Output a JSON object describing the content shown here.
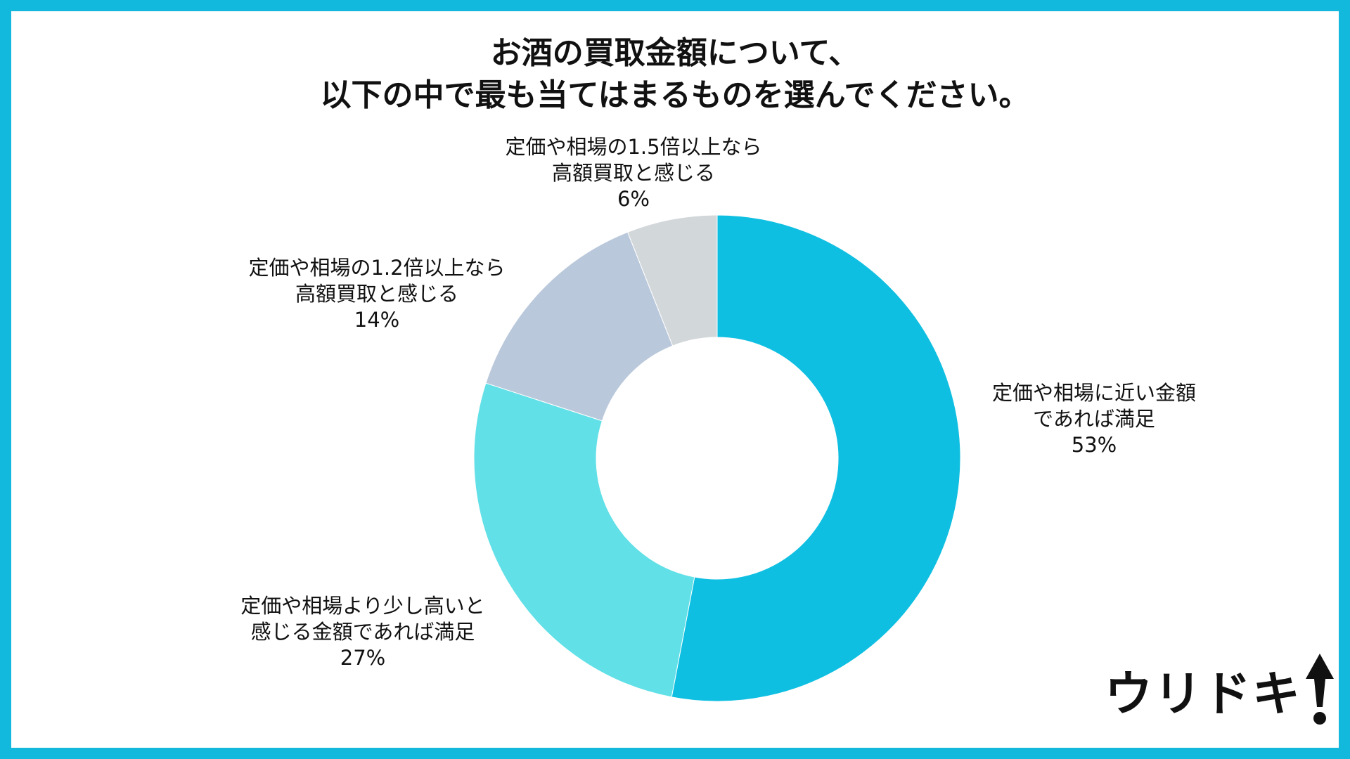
{
  "title_lines": [
    "お酒の買取金額について、",
    "以下の中で最も当てはまるものを選んでください。"
  ],
  "brand": {
    "name": "ウリドキ"
  },
  "colors": {
    "border": "#12b9dd",
    "background": "#ffffff"
  },
  "chart_data": {
    "type": "pie",
    "donut": true,
    "start": "top",
    "direction": "clockwise",
    "slices": [
      {
        "label_lines": [
          "定価や相場に近い金額",
          "であれば満足"
        ],
        "value": 53,
        "percent_text": "53%",
        "color": "#0fbfe1"
      },
      {
        "label_lines": [
          "定価や相場より少し高いと",
          "感じる金額であれば満足"
        ],
        "value": 27,
        "percent_text": "27%",
        "color": "#61e0e7"
      },
      {
        "label_lines": [
          "定価や相場の1.2倍以上なら",
          "高額買取と感じる"
        ],
        "value": 14,
        "percent_text": "14%",
        "color": "#bac8db"
      },
      {
        "label_lines": [
          "定価や相場の1.5倍以上なら",
          "高額買取と感じる"
        ],
        "value": 6,
        "percent_text": "6%",
        "color": "#d2d7da"
      }
    ]
  }
}
